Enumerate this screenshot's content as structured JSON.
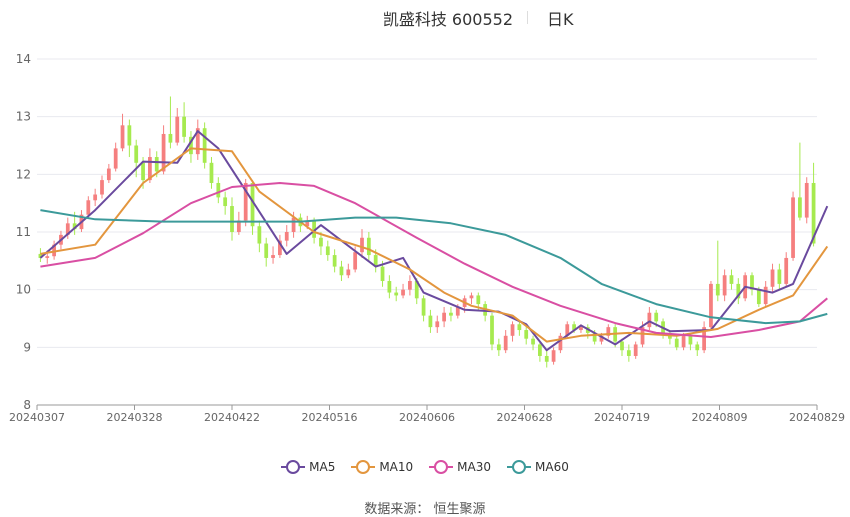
{
  "header": {
    "title": "凯盛科技 600552",
    "period": "日K"
  },
  "source": "数据来源： 恒生聚源",
  "colors": {
    "up": "#f57f7f",
    "down": "#a6ea4f",
    "grid": "#e8e9ef",
    "axis": "#999999",
    "axis_text": "#666666"
  },
  "chart_data": {
    "type": "candlestick",
    "x_tick_labels": [
      "20240307",
      "20240328",
      "20240422",
      "20240516",
      "20240606",
      "20240628",
      "20240719",
      "20240809",
      "20240829"
    ],
    "ylim": [
      8,
      14
    ],
    "y_ticks": [
      8,
      9,
      10,
      11,
      12,
      13,
      14
    ],
    "grid": true,
    "legend_position": "bottom",
    "series": [
      {
        "name": "MA5",
        "color": "#6a4a9e"
      },
      {
        "name": "MA10",
        "color": "#e3963e"
      },
      {
        "name": "MA30",
        "color": "#d94fa3"
      },
      {
        "name": "MA60",
        "color": "#3c9a9a"
      }
    ],
    "candles": [
      [
        10.62,
        10.55,
        10.72,
        10.48
      ],
      [
        10.55,
        10.58,
        10.68,
        10.45
      ],
      [
        10.58,
        10.78,
        10.85,
        10.52
      ],
      [
        10.78,
        10.95,
        11.02,
        10.7
      ],
      [
        10.95,
        11.15,
        11.25,
        10.88
      ],
      [
        11.15,
        11.05,
        11.35,
        10.95
      ],
      [
        11.05,
        11.3,
        11.38,
        11.0
      ],
      [
        11.3,
        11.55,
        11.62,
        11.25
      ],
      [
        11.55,
        11.65,
        11.75,
        11.45
      ],
      [
        11.65,
        11.9,
        11.98,
        11.58
      ],
      [
        11.9,
        12.1,
        12.18,
        11.85
      ],
      [
        12.1,
        12.45,
        12.55,
        12.05
      ],
      [
        12.45,
        12.85,
        13.05,
        12.4
      ],
      [
        12.85,
        12.5,
        12.95,
        12.3
      ],
      [
        12.5,
        12.2,
        12.6,
        11.95
      ],
      [
        12.2,
        11.9,
        12.3,
        11.75
      ],
      [
        11.9,
        12.3,
        12.45,
        11.85
      ],
      [
        12.3,
        12.05,
        12.4,
        11.95
      ],
      [
        12.05,
        12.7,
        12.85,
        12.0
      ],
      [
        12.7,
        12.55,
        13.35,
        12.45
      ],
      [
        12.55,
        13.0,
        13.15,
        12.5
      ],
      [
        13.0,
        12.65,
        13.25,
        12.55
      ],
      [
        12.65,
        12.35,
        12.75,
        12.2
      ],
      [
        12.35,
        12.8,
        12.95,
        12.25
      ],
      [
        12.8,
        12.2,
        12.9,
        12.1
      ],
      [
        12.2,
        11.85,
        12.3,
        11.75
      ],
      [
        11.85,
        11.6,
        11.95,
        11.5
      ],
      [
        11.6,
        11.45,
        11.7,
        11.3
      ],
      [
        11.45,
        11.0,
        11.6,
        10.85
      ],
      [
        11.0,
        11.2,
        11.35,
        10.95
      ],
      [
        11.2,
        11.85,
        11.92,
        11.1
      ],
      [
        11.85,
        11.1,
        11.9,
        10.95
      ],
      [
        11.1,
        10.8,
        11.2,
        10.65
      ],
      [
        10.8,
        10.55,
        10.9,
        10.4
      ],
      [
        10.55,
        10.6,
        10.75,
        10.45
      ],
      [
        10.6,
        10.85,
        10.95,
        10.55
      ],
      [
        10.85,
        11.0,
        11.12,
        10.75
      ],
      [
        11.0,
        11.25,
        11.35,
        10.9
      ],
      [
        11.25,
        11.1,
        11.32,
        11.0
      ],
      [
        11.1,
        11.2,
        11.28,
        11.05
      ],
      [
        11.2,
        10.9,
        11.25,
        10.8
      ],
      [
        10.9,
        10.75,
        11.0,
        10.6
      ],
      [
        10.75,
        10.6,
        10.85,
        10.5
      ],
      [
        10.6,
        10.4,
        10.7,
        10.3
      ],
      [
        10.4,
        10.25,
        10.5,
        10.15
      ],
      [
        10.25,
        10.35,
        10.45,
        10.2
      ],
      [
        10.35,
        10.65,
        10.75,
        10.3
      ],
      [
        10.65,
        10.9,
        11.05,
        10.55
      ],
      [
        10.9,
        10.6,
        11.0,
        10.5
      ],
      [
        10.6,
        10.4,
        10.7,
        10.3
      ],
      [
        10.4,
        10.15,
        10.5,
        10.05
      ],
      [
        10.15,
        9.95,
        10.25,
        9.85
      ],
      [
        9.95,
        9.9,
        10.05,
        9.8
      ],
      [
        9.9,
        10.0,
        10.1,
        9.85
      ],
      [
        10.0,
        10.15,
        10.25,
        9.9
      ],
      [
        10.15,
        9.85,
        10.2,
        9.75
      ],
      [
        9.85,
        9.55,
        9.9,
        9.45
      ],
      [
        9.55,
        9.35,
        9.65,
        9.25
      ],
      [
        9.35,
        9.45,
        9.55,
        9.25
      ],
      [
        9.45,
        9.6,
        9.7,
        9.35
      ],
      [
        9.6,
        9.55,
        9.7,
        9.45
      ],
      [
        9.55,
        9.7,
        9.75,
        9.5
      ],
      [
        9.7,
        9.85,
        9.9,
        9.6
      ],
      [
        9.85,
        9.9,
        9.95,
        9.75
      ],
      [
        9.9,
        9.75,
        9.95,
        9.65
      ],
      [
        9.75,
        9.55,
        9.8,
        9.45
      ],
      [
        9.55,
        9.05,
        9.6,
        8.95
      ],
      [
        9.05,
        8.95,
        9.15,
        8.85
      ],
      [
        8.95,
        9.2,
        9.3,
        8.9
      ],
      [
        9.2,
        9.4,
        9.45,
        9.1
      ],
      [
        9.4,
        9.3,
        9.45,
        9.2
      ],
      [
        9.3,
        9.15,
        9.35,
        9.05
      ],
      [
        9.15,
        9.05,
        9.2,
        8.95
      ],
      [
        9.05,
        8.85,
        9.1,
        8.75
      ],
      [
        8.85,
        8.75,
        8.95,
        8.65
      ],
      [
        8.75,
        8.95,
        9.0,
        8.7
      ],
      [
        8.95,
        9.2,
        9.25,
        8.9
      ],
      [
        9.2,
        9.4,
        9.45,
        9.15
      ],
      [
        9.4,
        9.3,
        9.45,
        9.25
      ],
      [
        9.3,
        9.35,
        9.4,
        9.25
      ],
      [
        9.35,
        9.25,
        9.4,
        9.15
      ],
      [
        9.25,
        9.1,
        9.3,
        9.05
      ],
      [
        9.1,
        9.2,
        9.25,
        9.05
      ],
      [
        9.2,
        9.35,
        9.4,
        9.15
      ],
      [
        9.35,
        9.1,
        9.4,
        9.0
      ],
      [
        9.1,
        8.95,
        9.15,
        8.85
      ],
      [
        8.95,
        8.85,
        9.05,
        8.75
      ],
      [
        8.85,
        9.05,
        9.1,
        8.8
      ],
      [
        9.05,
        9.35,
        9.45,
        9.0
      ],
      [
        9.35,
        9.6,
        9.7,
        9.3
      ],
      [
        9.6,
        9.45,
        9.65,
        9.35
      ],
      [
        9.45,
        9.25,
        9.5,
        9.15
      ],
      [
        9.25,
        9.15,
        9.3,
        9.05
      ],
      [
        9.15,
        9.0,
        9.2,
        8.95
      ],
      [
        9.0,
        9.2,
        9.25,
        8.95
      ],
      [
        9.2,
        9.05,
        9.25,
        8.95
      ],
      [
        9.05,
        8.95,
        9.1,
        8.85
      ],
      [
        8.95,
        9.35,
        9.45,
        8.9
      ],
      [
        9.35,
        10.1,
        10.15,
        9.3
      ],
      [
        10.1,
        9.9,
        10.85,
        9.8
      ],
      [
        9.9,
        10.25,
        10.35,
        9.8
      ],
      [
        10.25,
        10.1,
        10.35,
        10.0
      ],
      [
        10.1,
        9.85,
        10.2,
        9.75
      ],
      [
        9.85,
        10.25,
        10.3,
        9.8
      ],
      [
        10.25,
        10.0,
        10.3,
        9.9
      ],
      [
        10.0,
        9.75,
        10.05,
        9.7
      ],
      [
        9.75,
        10.05,
        10.15,
        9.7
      ],
      [
        10.05,
        10.35,
        10.45,
        9.95
      ],
      [
        10.35,
        10.1,
        10.45,
        10.0
      ],
      [
        10.1,
        10.55,
        10.65,
        10.05
      ],
      [
        10.55,
        11.6,
        11.7,
        10.5
      ],
      [
        11.6,
        11.25,
        12.55,
        11.2
      ],
      [
        11.25,
        11.85,
        11.95,
        11.15
      ],
      [
        11.85,
        10.8,
        12.2,
        10.75
      ]
    ],
    "ma_values": {
      "MA5": [
        [
          0,
          10.55
        ],
        [
          8,
          11.38
        ],
        [
          15,
          12.22
        ],
        [
          20,
          12.2
        ],
        [
          23,
          12.75
        ],
        [
          26,
          12.45
        ],
        [
          32,
          11.35
        ],
        [
          36,
          10.62
        ],
        [
          41,
          11.12
        ],
        [
          49,
          10.4
        ],
        [
          53,
          10.55
        ],
        [
          56,
          9.95
        ],
        [
          62,
          9.65
        ],
        [
          67,
          9.62
        ],
        [
          71,
          9.4
        ],
        [
          74,
          8.95
        ],
        [
          79,
          9.38
        ],
        [
          84,
          9.05
        ],
        [
          89,
          9.45
        ],
        [
          92,
          9.28
        ],
        [
          98,
          9.3
        ],
        [
          103,
          10.05
        ],
        [
          107,
          9.95
        ],
        [
          110,
          10.1
        ],
        [
          115,
          11.45
        ]
      ],
      "MA10": [
        [
          0,
          10.62
        ],
        [
          8,
          10.78
        ],
        [
          15,
          11.85
        ],
        [
          22,
          12.45
        ],
        [
          28,
          12.4
        ],
        [
          32,
          11.7
        ],
        [
          40,
          11.0
        ],
        [
          48,
          10.7
        ],
        [
          54,
          10.35
        ],
        [
          59,
          9.95
        ],
        [
          63,
          9.72
        ],
        [
          69,
          9.55
        ],
        [
          74,
          9.1
        ],
        [
          79,
          9.2
        ],
        [
          86,
          9.25
        ],
        [
          93,
          9.2
        ],
        [
          99,
          9.32
        ],
        [
          105,
          9.65
        ],
        [
          110,
          9.9
        ],
        [
          115,
          10.75
        ]
      ],
      "MA30": [
        [
          0,
          10.4
        ],
        [
          8,
          10.55
        ],
        [
          15,
          10.98
        ],
        [
          22,
          11.5
        ],
        [
          28,
          11.78
        ],
        [
          35,
          11.85
        ],
        [
          40,
          11.8
        ],
        [
          46,
          11.5
        ],
        [
          55,
          10.9
        ],
        [
          62,
          10.45
        ],
        [
          69,
          10.05
        ],
        [
          76,
          9.72
        ],
        [
          84,
          9.42
        ],
        [
          90,
          9.25
        ],
        [
          98,
          9.18
        ],
        [
          105,
          9.3
        ],
        [
          111,
          9.45
        ],
        [
          115,
          9.85
        ]
      ],
      "MA60": [
        [
          0,
          11.38
        ],
        [
          8,
          11.22
        ],
        [
          18,
          11.18
        ],
        [
          28,
          11.18
        ],
        [
          38,
          11.18
        ],
        [
          46,
          11.25
        ],
        [
          52,
          11.25
        ],
        [
          60,
          11.15
        ],
        [
          68,
          10.95
        ],
        [
          76,
          10.55
        ],
        [
          82,
          10.1
        ],
        [
          90,
          9.75
        ],
        [
          98,
          9.52
        ],
        [
          106,
          9.42
        ],
        [
          111,
          9.45
        ],
        [
          115,
          9.58
        ]
      ]
    }
  }
}
